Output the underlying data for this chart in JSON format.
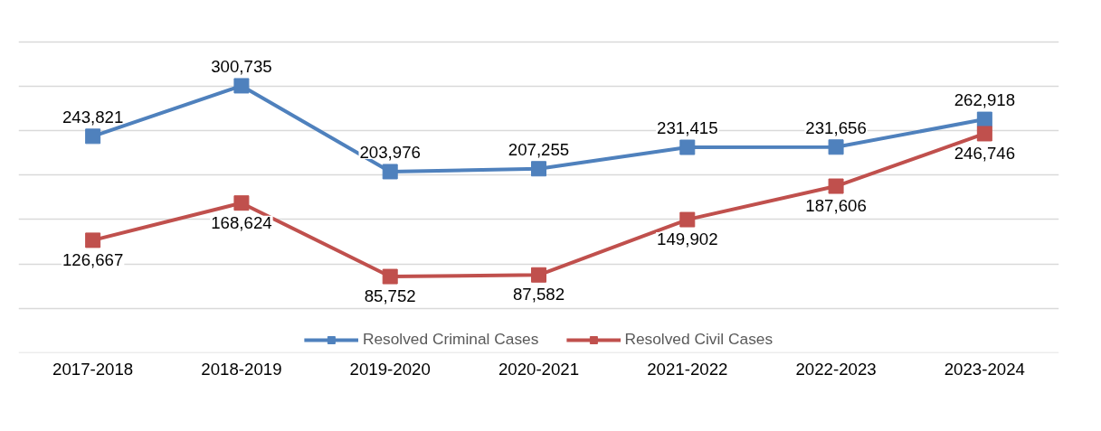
{
  "chart_data": {
    "type": "line",
    "categories": [
      "2017-2018",
      "2018-2019",
      "2019-2020",
      "2020-2021",
      "2021-2022",
      "2022-2023",
      "2023-2024"
    ],
    "series": [
      {
        "name": "Resolved Criminal Cases",
        "color": "#4f81bd",
        "values": [
          243821,
          300735,
          203976,
          207255,
          231415,
          231656,
          262918
        ],
        "value_labels": [
          "243,821",
          "300,735",
          "203,976",
          "207,255",
          "231,415",
          "231,656",
          "262,918"
        ]
      },
      {
        "name": "Resolved Civil Cases",
        "color": "#c0504d",
        "values": [
          126667,
          168624,
          85752,
          87582,
          149902,
          187606,
          246746
        ],
        "value_labels": [
          "126,667",
          "168,624",
          "85,752",
          "87,582",
          "149,902",
          "187,606",
          "246,746"
        ]
      }
    ],
    "tick_labels": "x",
    "grid": "y",
    "legend": "bottom",
    "marker": "square",
    "line_style": "solid"
  }
}
